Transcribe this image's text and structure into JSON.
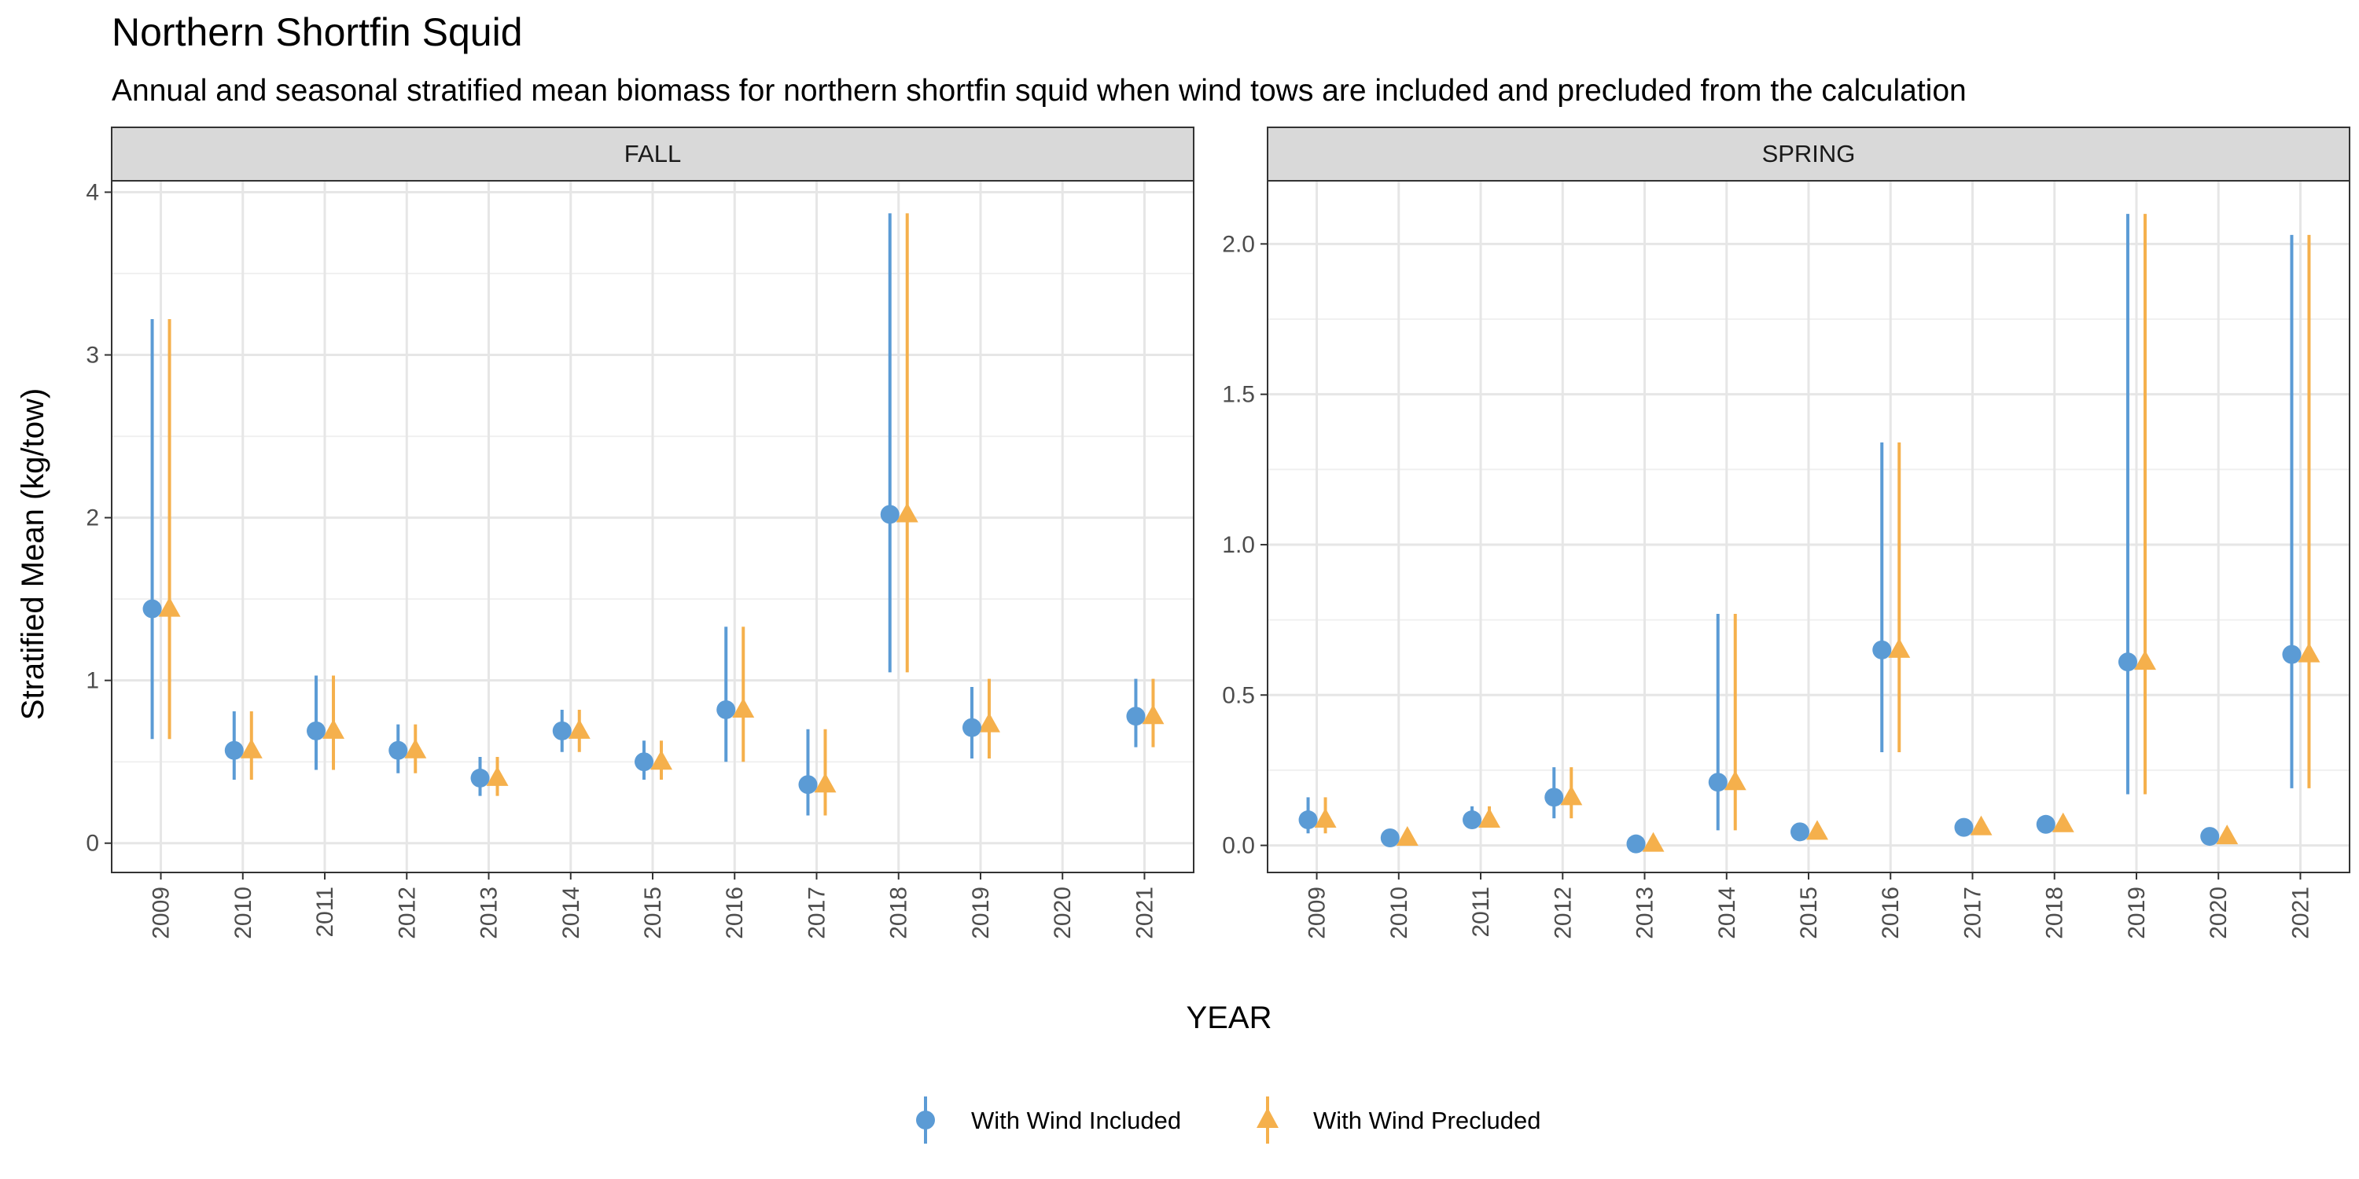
{
  "chart_data": {
    "type": "scatter",
    "title": "Northern Shortfin Squid",
    "subtitle": "Annual and seasonal stratified mean biomass for northern shortfin squid when wind tows are included and precluded from the calculation",
    "xlabel": "YEAR",
    "ylabel": "Stratified Mean (kg/tow)",
    "legend_position": "bottom",
    "grid": true,
    "colors": {
      "included": "#5b9bd5",
      "precluded": "#f5b04c"
    },
    "series_names": [
      "With Wind Included",
      "With Wind Precluded"
    ],
    "panels": [
      {
        "strip": "FALL",
        "ylim": [
          -0.18,
          4.07
        ],
        "yticks": [
          0,
          1,
          2,
          3,
          4
        ],
        "ytick_labels": [
          "0",
          "1",
          "2",
          "3",
          "4"
        ],
        "years": [
          "2009",
          "2010",
          "2011",
          "2012",
          "2013",
          "2014",
          "2015",
          "2016",
          "2017",
          "2018",
          "2019",
          "2020",
          "2021"
        ],
        "included": {
          "mean": [
            1.44,
            0.57,
            0.69,
            0.57,
            0.4,
            0.69,
            0.5,
            0.82,
            0.36,
            2.02,
            0.71,
            null,
            0.78
          ],
          "lower": [
            0.64,
            0.39,
            0.45,
            0.43,
            0.29,
            0.56,
            0.39,
            0.5,
            0.17,
            1.05,
            0.52,
            null,
            0.59
          ],
          "upper": [
            3.22,
            0.81,
            1.03,
            0.73,
            0.53,
            0.82,
            0.63,
            1.33,
            0.7,
            3.87,
            0.96,
            null,
            1.01
          ]
        },
        "precluded": {
          "mean": [
            1.44,
            0.57,
            0.69,
            0.57,
            0.4,
            0.69,
            0.5,
            0.82,
            0.36,
            2.02,
            0.73,
            null,
            0.78
          ],
          "lower": [
            0.64,
            0.39,
            0.45,
            0.43,
            0.29,
            0.56,
            0.39,
            0.5,
            0.17,
            1.05,
            0.52,
            null,
            0.59
          ],
          "upper": [
            3.22,
            0.81,
            1.03,
            0.73,
            0.53,
            0.82,
            0.63,
            1.33,
            0.7,
            3.87,
            1.01,
            null,
            1.01
          ]
        }
      },
      {
        "strip": "SPRING",
        "ylim": [
          -0.09,
          2.21
        ],
        "yticks": [
          0,
          0.5,
          1,
          1.5,
          2
        ],
        "ytick_labels": [
          "0.0",
          "0.5",
          "1.0",
          "1.5",
          "2.0"
        ],
        "years": [
          "2009",
          "2010",
          "2011",
          "2012",
          "2013",
          "2014",
          "2015",
          "2016",
          "2017",
          "2018",
          "2019",
          "2020",
          "2021"
        ],
        "included": {
          "mean": [
            0.085,
            0.025,
            0.085,
            0.16,
            0.005,
            0.21,
            0.045,
            0.65,
            0.06,
            0.07,
            0.61,
            0.03,
            0.635
          ],
          "lower": [
            0.04,
            0.015,
            0.06,
            0.09,
            0.0,
            0.05,
            0.03,
            0.31,
            0.04,
            0.05,
            0.17,
            0.02,
            0.19
          ],
          "upper": [
            0.16,
            0.035,
            0.13,
            0.26,
            0.015,
            0.77,
            0.06,
            1.34,
            0.08,
            0.1,
            2.1,
            0.04,
            2.03
          ]
        },
        "precluded": {
          "mean": [
            0.085,
            0.025,
            0.085,
            0.16,
            0.005,
            0.21,
            0.045,
            0.65,
            0.06,
            0.07,
            0.61,
            0.03,
            0.635
          ],
          "lower": [
            0.04,
            0.015,
            0.06,
            0.09,
            0.0,
            0.05,
            0.03,
            0.31,
            0.04,
            0.05,
            0.17,
            0.02,
            0.19
          ],
          "upper": [
            0.16,
            0.035,
            0.13,
            0.26,
            0.015,
            0.77,
            0.06,
            1.34,
            0.08,
            0.1,
            2.1,
            0.04,
            2.03
          ]
        }
      }
    ]
  }
}
